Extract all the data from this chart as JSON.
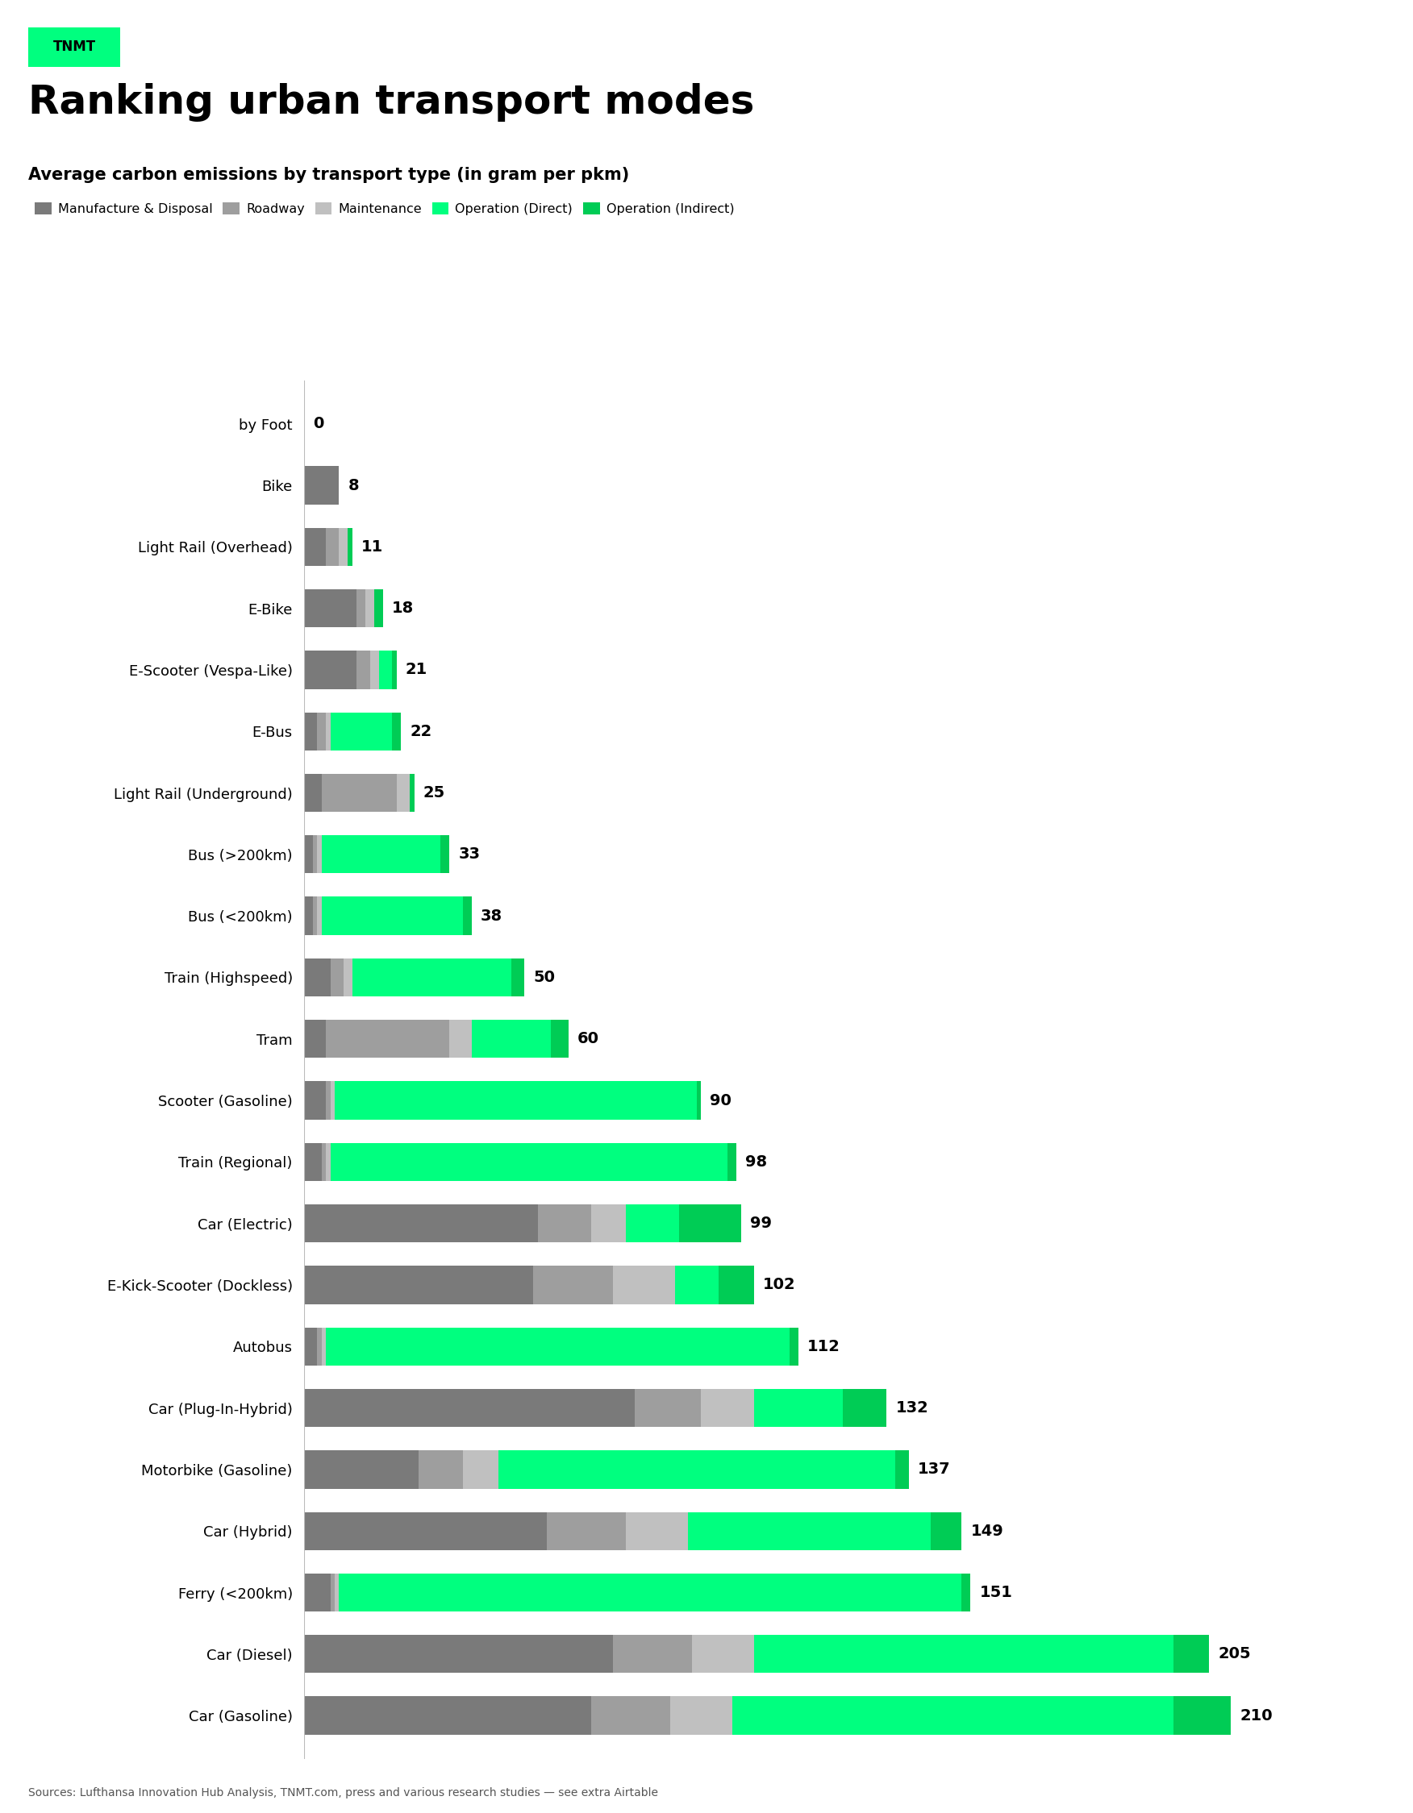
{
  "title": "Ranking urban transport modes",
  "subtitle": "Average carbon emissions by transport type (in gram per pkm)",
  "source": "Sources: Lufthansa Innovation Hub Analysis, TNMT.com, press and various research studies — see extra Airtable",
  "brand": "TNMT",
  "brand_bg": "#00FF7F",
  "legend": [
    "Manufacture & Disposal",
    "Roadway",
    "Maintenance",
    "Operation (Direct)",
    "Operation (Indirect)"
  ],
  "categories": [
    "by Foot",
    "Bike",
    "Light Rail (Overhead)",
    "E-Bike",
    "E-Scooter (Vespa-Like)",
    "E-Bus",
    "Light Rail (Underground)",
    "Bus (>200km)",
    "Bus (<200km)",
    "Train (Highspeed)",
    "Tram",
    "Scooter (Gasoline)",
    "Train (Regional)",
    "Car (Electric)",
    "E-Kick-Scooter (Dockless)",
    "Autobus",
    "Car (Plug-In-Hybrid)",
    "Motorbike (Gasoline)",
    "Car (Hybrid)",
    "Ferry (<200km)",
    "Car (Diesel)",
    "Car (Gasoline)"
  ],
  "totals": [
    0,
    8,
    11,
    18,
    21,
    22,
    25,
    33,
    38,
    50,
    60,
    90,
    98,
    99,
    102,
    112,
    132,
    137,
    149,
    151,
    205,
    210
  ],
  "segments": [
    [
      0,
      0,
      0,
      0,
      0
    ],
    [
      8,
      0,
      0,
      0,
      0
    ],
    [
      5,
      3,
      2,
      0,
      1
    ],
    [
      12,
      2,
      2,
      0,
      2
    ],
    [
      12,
      3,
      2,
      3,
      1
    ],
    [
      3,
      2,
      1,
      14,
      2
    ],
    [
      4,
      17,
      3,
      0,
      1
    ],
    [
      2,
      1,
      1,
      27,
      2
    ],
    [
      2,
      1,
      1,
      32,
      2
    ],
    [
      6,
      3,
      2,
      36,
      3
    ],
    [
      5,
      28,
      5,
      18,
      4
    ],
    [
      5,
      1,
      1,
      82,
      1
    ],
    [
      4,
      1,
      1,
      90,
      2
    ],
    [
      53,
      12,
      8,
      12,
      14
    ],
    [
      52,
      18,
      14,
      10,
      8
    ],
    [
      3,
      1,
      1,
      105,
      2
    ],
    [
      75,
      15,
      12,
      20,
      10
    ],
    [
      26,
      10,
      8,
      90,
      3
    ],
    [
      55,
      18,
      14,
      55,
      7
    ],
    [
      6,
      1,
      1,
      141,
      2
    ],
    [
      70,
      18,
      14,
      95,
      8
    ],
    [
      65,
      18,
      14,
      100,
      13
    ]
  ],
  "colors": [
    "#7A7A7A",
    "#9E9E9E",
    "#C0C0C0",
    "#00FF7F",
    "#00CC55"
  ],
  "bg_color": "#FFFFFF",
  "bar_height": 0.62,
  "xlim": [
    0,
    240
  ]
}
